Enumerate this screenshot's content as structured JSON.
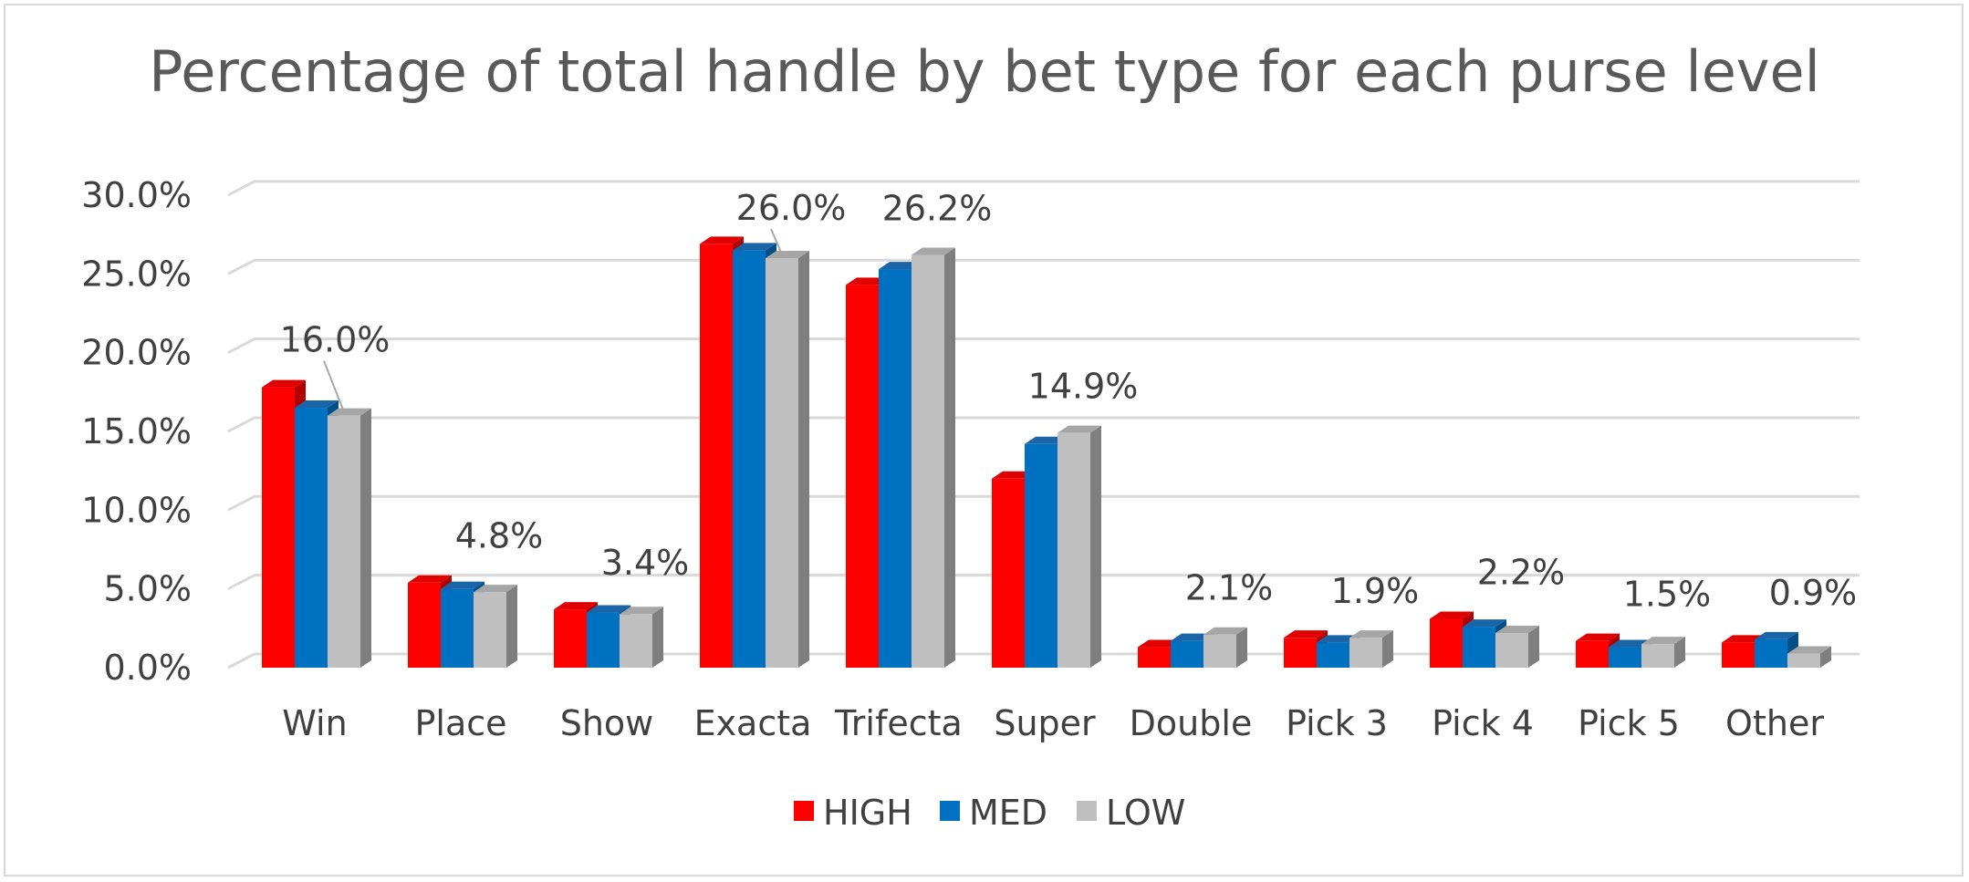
{
  "chart_data": {
    "type": "bar",
    "title": "Percentage of total handle by bet type for each purse level",
    "xlabel": "",
    "ylabel": "",
    "ylim": [
      0,
      30
    ],
    "yticks": [
      "0.0%",
      "5.0%",
      "10.0%",
      "15.0%",
      "20.0%",
      "25.0%",
      "30.0%"
    ],
    "grid": true,
    "legend_position": "bottom",
    "categories": [
      "Win",
      "Place",
      "Show",
      "Exacta",
      "Trifecta",
      "Super",
      "Double",
      "Pick 3",
      "Pick 4",
      "Pick 5",
      "Other"
    ],
    "series": [
      {
        "name": "HIGH",
        "color": "#ff0000",
        "side_color": "#b00000",
        "top_color": "#e00000",
        "values": [
          17.8,
          5.4,
          3.7,
          26.9,
          24.3,
          12.0,
          1.3,
          1.9,
          3.1,
          1.7,
          1.6
        ]
      },
      {
        "name": "MED",
        "color": "#0070c0",
        "side_color": "#004f88",
        "top_color": "#1a64a8",
        "values": [
          16.5,
          5.0,
          3.5,
          26.5,
          25.3,
          14.2,
          1.7,
          1.6,
          2.6,
          1.3,
          1.8
        ]
      },
      {
        "name": "LOW",
        "color": "#bfbfbf",
        "side_color": "#7f7f7f",
        "top_color": "#a6a6a6",
        "values": [
          16.0,
          4.8,
          3.4,
          26.0,
          26.2,
          14.9,
          2.1,
          1.9,
          2.2,
          1.5,
          0.9
        ]
      }
    ],
    "data_labels": [
      "16.0%",
      "4.8%",
      "3.4%",
      "26.0%",
      "26.2%",
      "14.9%",
      "2.1%",
      "1.9%",
      "2.2%",
      "1.5%",
      "0.9%"
    ]
  }
}
